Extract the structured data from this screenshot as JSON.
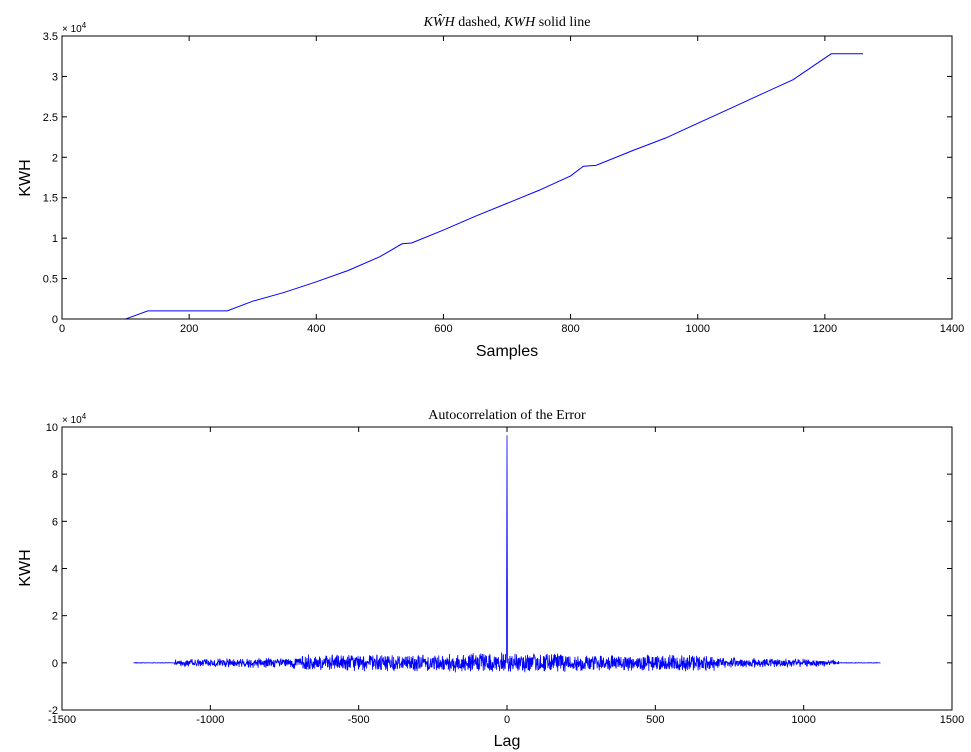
{
  "chart_data": [
    {
      "type": "line",
      "title_parts": [
        "KŴH",
        " dashed, ",
        "KWH",
        " solid line"
      ],
      "xlabel": "Samples",
      "ylabel": "KWH",
      "xlim": [
        0,
        1400
      ],
      "ylim": [
        0,
        35000
      ],
      "xticks": [
        0,
        200,
        400,
        600,
        800,
        1000,
        1200,
        1400
      ],
      "yticks": [
        0,
        5000,
        10000,
        15000,
        20000,
        25000,
        30000,
        35000
      ],
      "xtick_labels": [
        "0",
        "200",
        "400",
        "600",
        "800",
        "1000",
        "1200",
        "1400"
      ],
      "ytick_labels": [
        "0",
        "0.5",
        "1",
        "1.5",
        "2",
        "2.5",
        "3",
        "3.5"
      ],
      "y_exponent": {
        "base": "× 10",
        "power": "4"
      },
      "grid": false,
      "series": [
        {
          "style": "dashed",
          "color": "#0000ff",
          "x": [
            0,
            100
          ],
          "y": [
            0,
            0
          ]
        },
        {
          "style": "solid",
          "color": "#0000ff",
          "x": [
            100,
            135,
            200,
            260,
            300,
            350,
            400,
            450,
            500,
            535,
            550,
            600,
            650,
            700,
            750,
            800,
            820,
            840,
            900,
            950,
            1000,
            1050,
            1100,
            1150,
            1210,
            1260
          ],
          "y": [
            0,
            1000,
            1000,
            1000,
            2200,
            3300,
            4600,
            6000,
            7700,
            9300,
            9400,
            11000,
            12700,
            14300,
            15900,
            17700,
            18900,
            19000,
            20900,
            22400,
            24200,
            26000,
            27800,
            29600,
            32800,
            32800
          ]
        }
      ]
    },
    {
      "type": "line",
      "title": "Autocorrelation of the Error",
      "xlabel": "Lag",
      "ylabel": "KWH",
      "xlim": [
        -1500,
        1500
      ],
      "ylim": [
        -20000,
        100000
      ],
      "xticks": [
        -1500,
        -1000,
        -500,
        0,
        500,
        1000,
        1500
      ],
      "yticks": [
        -20000,
        0,
        20000,
        40000,
        60000,
        80000,
        100000
      ],
      "xtick_labels": [
        "-1500",
        "-1000",
        "-500",
        "0",
        "500",
        "1000",
        "1500"
      ],
      "ytick_labels": [
        "-2",
        "0",
        "2",
        "4",
        "6",
        "8",
        "10"
      ],
      "y_exponent": {
        "base": "× 10",
        "power": "4"
      },
      "grid": false,
      "series": [
        {
          "style": "solid",
          "color": "#0000ff",
          "lag_range": [
            -1259,
            1259
          ],
          "peak_value": 96500,
          "noise_start_abs_lag": 1120,
          "noise_amplitude_core": 3000,
          "tail_value": 0
        }
      ]
    }
  ]
}
